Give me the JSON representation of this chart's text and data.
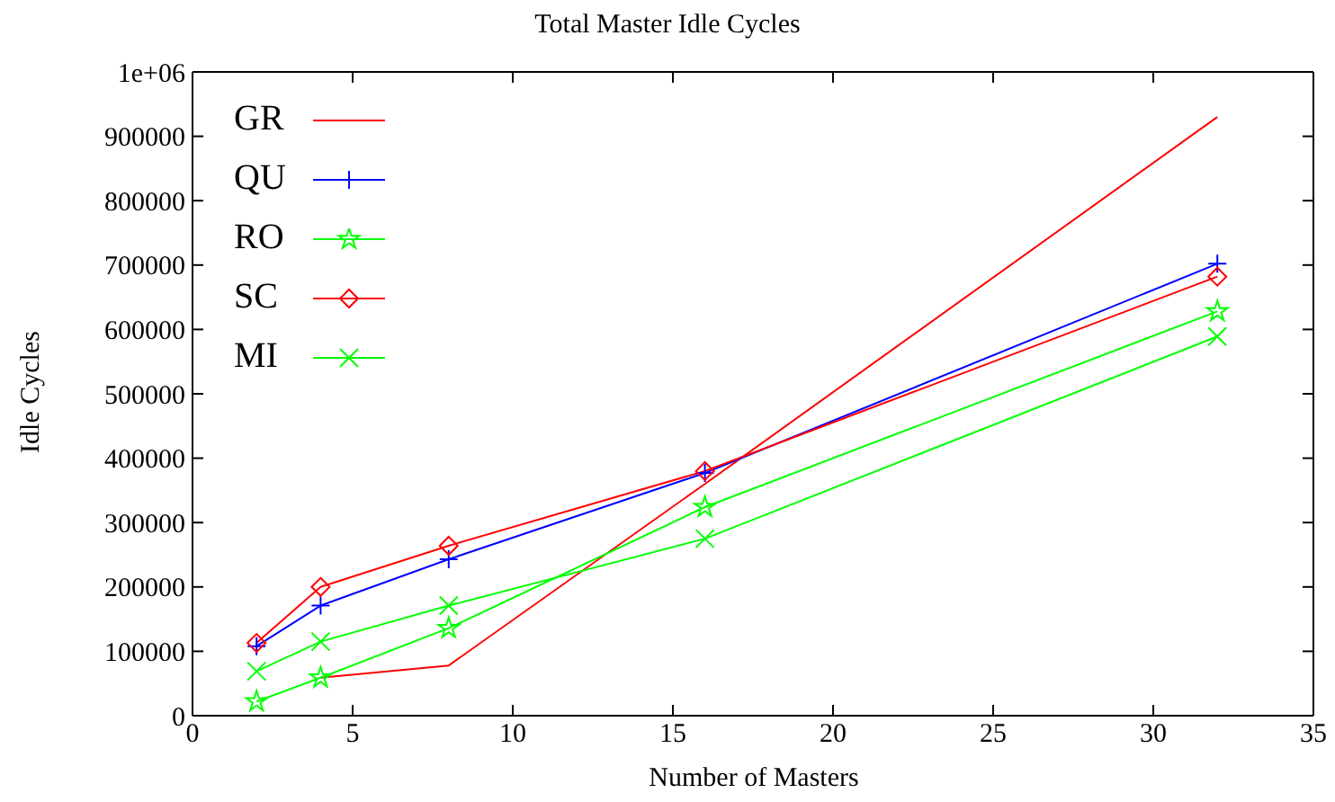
{
  "chart_data": {
    "type": "line",
    "title": "Total Master Idle Cycles",
    "xlabel": "Number of Masters",
    "ylabel": "Idle Cycles",
    "x": [
      2,
      4,
      8,
      16,
      32
    ],
    "series": [
      {
        "name": "GR",
        "color": "#ff0000",
        "marker": "none",
        "values": [
          null,
          59000,
          78000,
          360000,
          930000
        ]
      },
      {
        "name": "QU",
        "color": "#0000ff",
        "marker": "cross",
        "values": [
          108000,
          171000,
          243000,
          377000,
          702000
        ]
      },
      {
        "name": "RO",
        "color": "#00ff00",
        "marker": "star",
        "values": [
          22000,
          59000,
          136000,
          324000,
          628000
        ]
      },
      {
        "name": "SC",
        "color": "#ff0000",
        "marker": "diamond",
        "values": [
          113000,
          200000,
          264000,
          380000,
          682000
        ]
      },
      {
        "name": "MI",
        "color": "#00ff00",
        "marker": "x",
        "values": [
          69000,
          115000,
          171000,
          275000,
          589000
        ]
      }
    ],
    "xlim": [
      0,
      35
    ],
    "xticks": [
      0,
      5,
      10,
      15,
      20,
      25,
      30,
      35
    ],
    "ylim": [
      0,
      1000000
    ],
    "yticks": [
      0,
      100000,
      200000,
      300000,
      400000,
      500000,
      600000,
      700000,
      800000,
      900000,
      {
        "value": 1000000,
        "label": "1e+06"
      }
    ],
    "grid": false,
    "legend": "top left"
  }
}
